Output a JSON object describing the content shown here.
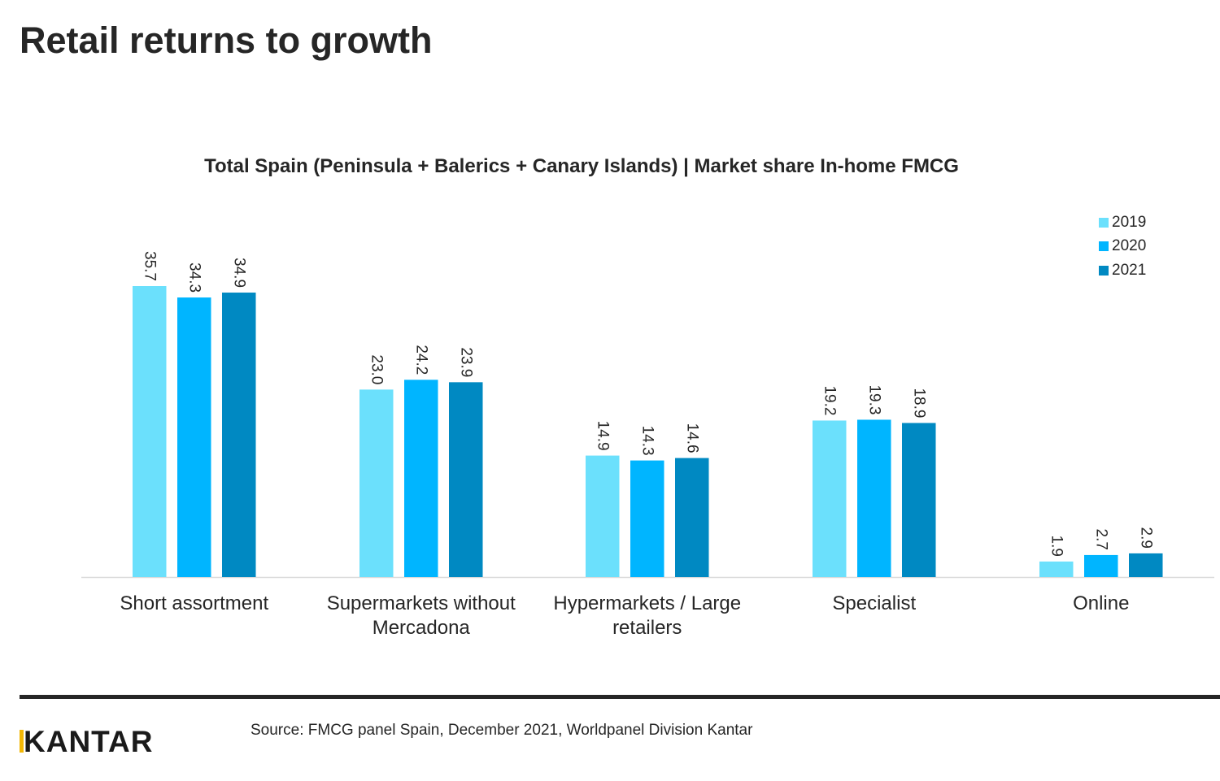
{
  "page": {
    "title": "Retail returns to growth",
    "source": "Source: FMCG panel Spain, December 2021, Worldpanel Division Kantar",
    "logo_text": "KANTAR"
  },
  "colors": {
    "2019": "#6be0fc",
    "2020": "#00b5ff",
    "2021": "#0089c2",
    "text": "#262626",
    "logo_accent": "#f2b705"
  },
  "chart_data": {
    "type": "bar",
    "title": "Total Spain (Peninsula + Balerics + Canary Islands) | Market share In-home FMCG",
    "xlabel": "",
    "ylabel": "",
    "ylim": [
      0,
      40
    ],
    "grid": false,
    "legend_position": "top-right",
    "categories": [
      [
        "Short assortment"
      ],
      [
        "Supermarkets without",
        "Mercadona"
      ],
      [
        "Hypermarkets / Large",
        "retailers"
      ],
      [
        "Specialist"
      ],
      [
        "Online"
      ]
    ],
    "series": [
      {
        "name": "2019",
        "values": [
          35.7,
          23.0,
          14.9,
          19.2,
          1.9
        ],
        "labels": [
          "35.7",
          "23.0",
          "14.9",
          "19.2",
          "1.9"
        ]
      },
      {
        "name": "2020",
        "values": [
          34.3,
          24.2,
          14.3,
          19.3,
          2.7
        ],
        "labels": [
          "34.3",
          "24.2",
          "14.3",
          "19.3",
          "2.7"
        ]
      },
      {
        "name": "2021",
        "values": [
          34.9,
          23.9,
          14.6,
          18.9,
          2.9
        ],
        "labels": [
          "34.9",
          "23.9",
          "14.6",
          "18.9",
          "2.9"
        ]
      }
    ]
  }
}
